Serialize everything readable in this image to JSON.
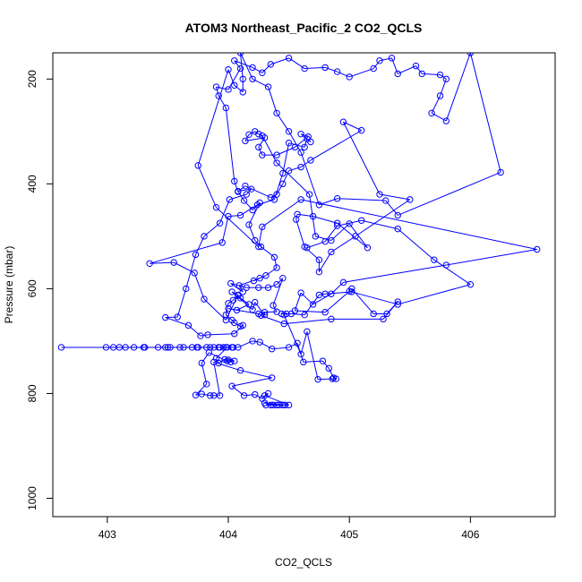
{
  "chart_data": {
    "type": "line",
    "title": "ATOM3 Northeast_Pacific_2 CO2_QCLS",
    "xlabel": "CO2_QCLS",
    "ylabel": "Pressure (mbar)",
    "x_ticks": [
      403,
      404,
      405,
      406
    ],
    "y_ticks": [
      200,
      400,
      600,
      800,
      1000
    ],
    "xlim": [
      402.55,
      406.7
    ],
    "ylim": [
      1035,
      150
    ],
    "y_reversed": true,
    "markers": "open-circle",
    "color": "#0000ff",
    "grid": false,
    "series": [
      {
        "name": "",
        "points": [
          [
            404.42,
            822
          ],
          [
            404.47,
            822
          ],
          [
            404.37,
            822
          ],
          [
            404.3,
            818
          ],
          [
            404.45,
            822
          ],
          [
            404.35,
            822
          ],
          [
            404.4,
            822
          ],
          [
            404.31,
            822
          ],
          [
            404.5,
            822
          ],
          [
            404.3,
            804
          ],
          [
            404.33,
            800
          ],
          [
            404.28,
            810
          ],
          [
            404.22,
            802
          ],
          [
            404.13,
            804
          ],
          [
            404.03,
            786
          ],
          [
            404.36,
            770
          ],
          [
            404.1,
            756
          ],
          [
            403.88,
            740
          ],
          [
            403.93,
            804
          ],
          [
            403.88,
            804
          ],
          [
            403.85,
            804
          ],
          [
            403.78,
            801
          ],
          [
            403.73,
            803
          ],
          [
            403.82,
            782
          ],
          [
            403.78,
            742
          ],
          [
            403.84,
            722
          ],
          [
            403.99,
            738
          ],
          [
            404.02,
            740
          ],
          [
            404.05,
            738
          ],
          [
            404.0,
            736
          ],
          [
            403.97,
            735
          ],
          [
            403.92,
            742
          ],
          [
            403.9,
            733
          ],
          [
            403.99,
            712
          ],
          [
            404.03,
            712
          ],
          [
            403.96,
            712
          ],
          [
            403.93,
            712
          ],
          [
            403.88,
            712
          ],
          [
            403.82,
            712
          ],
          [
            403.75,
            712
          ],
          [
            403.7,
            712
          ],
          [
            403.6,
            712
          ],
          [
            403.52,
            712
          ],
          [
            403.48,
            712
          ],
          [
            403.42,
            712
          ],
          [
            403.31,
            712
          ],
          [
            403.22,
            712
          ],
          [
            403.15,
            712
          ],
          [
            403.1,
            712
          ],
          [
            403.05,
            712
          ],
          [
            402.99,
            712
          ],
          [
            402.62,
            712
          ],
          [
            403.3,
            712
          ],
          [
            403.5,
            712
          ],
          [
            403.63,
            712
          ],
          [
            403.74,
            712
          ],
          [
            403.85,
            712
          ],
          [
            403.92,
            712
          ],
          [
            403.98,
            712
          ],
          [
            404.04,
            712
          ],
          [
            404.08,
            712
          ],
          [
            404.2,
            700
          ],
          [
            404.26,
            702
          ],
          [
            404.36,
            715
          ],
          [
            404.5,
            712
          ],
          [
            404.57,
            704
          ],
          [
            404.62,
            740
          ],
          [
            404.78,
            738
          ],
          [
            404.83,
            752
          ],
          [
            404.87,
            770
          ],
          [
            404.89,
            772
          ],
          [
            404.86,
            772
          ],
          [
            404.74,
            773
          ],
          [
            404.65,
            682
          ],
          [
            404.6,
            725
          ],
          [
            404.46,
            650
          ],
          [
            404.48,
            648
          ],
          [
            404.44,
            648
          ],
          [
            404.52,
            648
          ],
          [
            404.63,
            650
          ],
          [
            404.75,
            612
          ],
          [
            404.8,
            610
          ],
          [
            405.02,
            606
          ],
          [
            405.02,
            600
          ],
          [
            405.2,
            648
          ],
          [
            405.31,
            648
          ],
          [
            405.4,
            625
          ],
          [
            405.28,
            658
          ],
          [
            404.85,
            658
          ],
          [
            404.46,
            667
          ],
          [
            404.27,
            651
          ],
          [
            404.25,
            648
          ],
          [
            404.0,
            638
          ],
          [
            404.07,
            641
          ],
          [
            404.17,
            630
          ],
          [
            404.1,
            618
          ],
          [
            404.08,
            613
          ],
          [
            404.04,
            622
          ],
          [
            404.0,
            628
          ],
          [
            403.98,
            650
          ],
          [
            404.03,
            660
          ],
          [
            404.05,
            665
          ],
          [
            404.1,
            672
          ],
          [
            404.12,
            670
          ],
          [
            404.05,
            686
          ],
          [
            403.83,
            688
          ],
          [
            403.77,
            690
          ],
          [
            403.67,
            670
          ],
          [
            403.48,
            655
          ],
          [
            403.58,
            654
          ],
          [
            403.65,
            600
          ],
          [
            403.73,
            535
          ],
          [
            403.8,
            500
          ],
          [
            403.93,
            475
          ],
          [
            404.01,
            430
          ],
          [
            404.15,
            420
          ],
          [
            404.19,
            410
          ],
          [
            404.08,
            414
          ],
          [
            404.13,
            432
          ],
          [
            404.2,
            450
          ],
          [
            404.26,
            436
          ],
          [
            404.17,
            478
          ],
          [
            404.22,
            508
          ],
          [
            404.27,
            520
          ],
          [
            404.38,
            540
          ],
          [
            404.4,
            560
          ],
          [
            404.31,
            575
          ],
          [
            404.21,
            585
          ],
          [
            404.26,
            580
          ],
          [
            404.09,
            594
          ],
          [
            404.12,
            606
          ],
          [
            404.02,
            590
          ],
          [
            404.15,
            598
          ],
          [
            404.25,
            598
          ],
          [
            404.33,
            598
          ],
          [
            404.4,
            592
          ],
          [
            404.45,
            580
          ],
          [
            404.37,
            632
          ],
          [
            404.4,
            644
          ],
          [
            404.3,
            645
          ],
          [
            404.3,
            650
          ],
          [
            404.22,
            626
          ],
          [
            404.2,
            640
          ],
          [
            404.03,
            606
          ],
          [
            404.08,
            612
          ],
          [
            403.98,
            660
          ],
          [
            403.8,
            620
          ],
          [
            403.72,
            570
          ],
          [
            403.55,
            550
          ],
          [
            403.35,
            552
          ],
          [
            403.95,
            512
          ],
          [
            404.0,
            462
          ],
          [
            404.1,
            460
          ],
          [
            404.24,
            440
          ],
          [
            404.38,
            430
          ],
          [
            404.45,
            380
          ],
          [
            404.5,
            322
          ],
          [
            404.63,
            330
          ],
          [
            404.65,
            314
          ],
          [
            404.68,
            320
          ],
          [
            404.6,
            305
          ],
          [
            404.66,
            310
          ],
          [
            404.55,
            330
          ],
          [
            404.4,
            345
          ],
          [
            404.28,
            345
          ],
          [
            404.25,
            330
          ],
          [
            404.3,
            312
          ],
          [
            404.14,
            318
          ],
          [
            404.17,
            306
          ],
          [
            404.22,
            300
          ],
          [
            404.25,
            305
          ],
          [
            404.28,
            308
          ],
          [
            404.4,
            360
          ],
          [
            404.67,
            420
          ],
          [
            404.72,
            500
          ],
          [
            404.85,
            508
          ],
          [
            405.0,
            476
          ],
          [
            405.15,
            522
          ],
          [
            404.9,
            475
          ],
          [
            404.7,
            462
          ],
          [
            404.57,
            458
          ],
          [
            404.56,
            468
          ],
          [
            404.63,
            520
          ],
          [
            404.75,
            545
          ],
          [
            404.75,
            568
          ],
          [
            404.85,
            530
          ],
          [
            405.05,
            500
          ],
          [
            405.5,
            430
          ],
          [
            405.25,
            420
          ],
          [
            404.95,
            282
          ],
          [
            405.1,
            298
          ],
          [
            404.68,
            355
          ],
          [
            404.6,
            368
          ],
          [
            404.5,
            375
          ],
          [
            404.45,
            400
          ],
          [
            404.4,
            420
          ],
          [
            404.35,
            426
          ],
          [
            404.14,
            404
          ],
          [
            404.08,
            415
          ],
          [
            404.05,
            395
          ],
          [
            403.98,
            255
          ],
          [
            403.92,
            232
          ],
          [
            403.9,
            215
          ],
          [
            404.0,
            220
          ],
          [
            404.1,
            180
          ],
          [
            404.05,
            165
          ],
          [
            404.2,
            178
          ],
          [
            404.28,
            188
          ],
          [
            404.35,
            172
          ],
          [
            404.5,
            160
          ],
          [
            404.63,
            180
          ],
          [
            404.8,
            178
          ],
          [
            404.9,
            186
          ],
          [
            405.0,
            196
          ],
          [
            405.2,
            180
          ],
          [
            405.25,
            165
          ],
          [
            405.35,
            160
          ],
          [
            405.4,
            190
          ],
          [
            405.55,
            175
          ],
          [
            405.6,
            190
          ],
          [
            405.75,
            192
          ],
          [
            405.8,
            200
          ],
          [
            405.75,
            232
          ],
          [
            405.68,
            265
          ],
          [
            405.8,
            280
          ],
          [
            406.0,
            150
          ],
          [
            406.25,
            378
          ],
          [
            405.4,
            460
          ],
          [
            405.3,
            432
          ],
          [
            404.9,
            428
          ],
          [
            404.75,
            440
          ],
          [
            404.6,
            340
          ],
          [
            404.5,
            300
          ],
          [
            404.4,
            265
          ],
          [
            404.33,
            215
          ],
          [
            404.2,
            200
          ],
          [
            404.1,
            150
          ],
          [
            404.12,
            200
          ],
          [
            404.12,
            225
          ],
          [
            404.05,
            212
          ],
          [
            404.0,
            182
          ],
          [
            403.75,
            365
          ],
          [
            403.9,
            445
          ],
          [
            404.25,
            520
          ],
          [
            404.28,
            482
          ],
          [
            404.6,
            430
          ],
          [
            406.55,
            525
          ],
          [
            405.8,
            555
          ],
          [
            404.95,
            588
          ],
          [
            404.85,
            610
          ],
          [
            404.7,
            630
          ],
          [
            404.6,
            608
          ],
          [
            404.55,
            642
          ],
          [
            404.8,
            645
          ],
          [
            405.0,
            605
          ],
          [
            405.4,
            630
          ],
          [
            406.0,
            592
          ],
          [
            405.7,
            545
          ],
          [
            405.4,
            486
          ],
          [
            405.1,
            470
          ],
          [
            404.9,
            480
          ],
          [
            404.8,
            510
          ],
          [
            404.65,
            522
          ]
        ]
      }
    ]
  }
}
